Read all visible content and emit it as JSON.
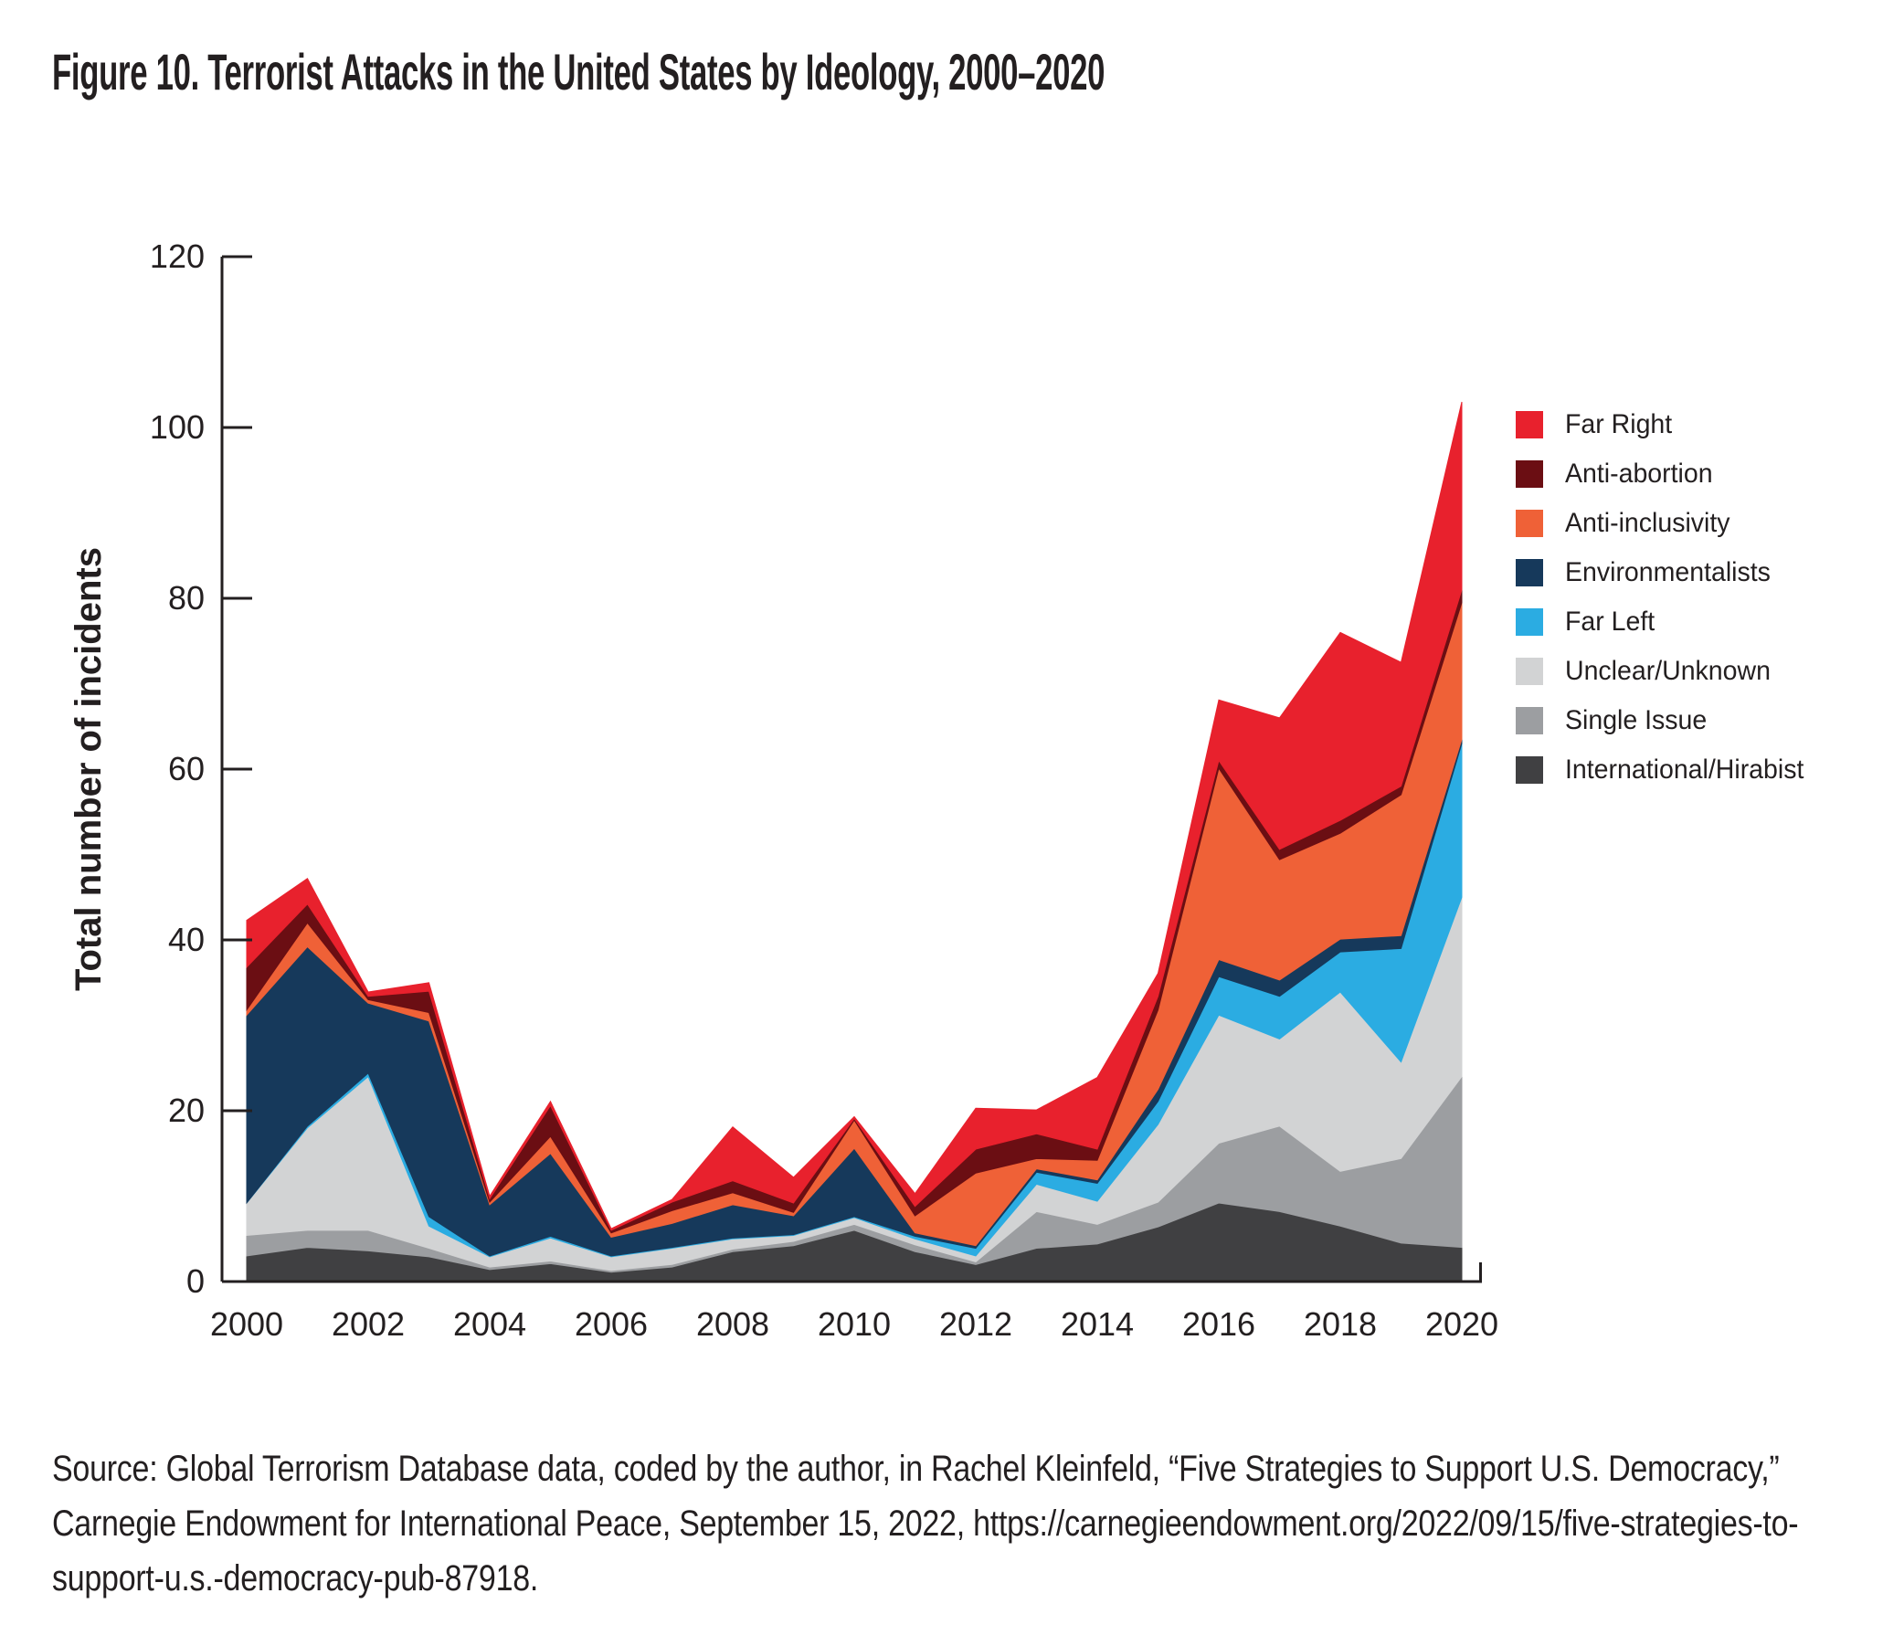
{
  "figure": {
    "title": "Figure 10. Terrorist Attacks in the United States by Ideology, 2000–2020"
  },
  "source": {
    "text": "Source: Global Terrorism Database data, coded by the author, in Rachel Kleinfeld, “Five Strategies to Support U.S. Democracy,” Carnegie Endowment for International Peace, September 15, 2022, https://carnegieendowment.org/2022/09/15/five-strategies-to-support-u.s.-democracy-pub-87918."
  },
  "legend": {
    "position": "right",
    "items": [
      {
        "label": "Far Right",
        "color": "#E8212D"
      },
      {
        "label": "Anti-abortion",
        "color": "#6B0E13"
      },
      {
        "label": "Anti-inclusivity",
        "color": "#EF6137"
      },
      {
        "label": "Environmentalists",
        "color": "#16395B"
      },
      {
        "label": "Far Left",
        "color": "#2BACE2"
      },
      {
        "label": "Unclear/Unknown",
        "color": "#D2D3D4"
      },
      {
        "label": "Single Issue",
        "color": "#9C9EA1"
      },
      {
        "label": "International/Hirabist",
        "color": "#404042"
      }
    ]
  },
  "chart_data": {
    "type": "area",
    "stacked": true,
    "title": "Figure 10. Terrorist Attacks in the United States by Ideology, 2000–2020",
    "xlabel": "",
    "ylabel": "Total number of incidents",
    "ylim": [
      0,
      120
    ],
    "y_ticks": [
      0,
      20,
      40,
      60,
      80,
      100,
      120
    ],
    "grid": false,
    "legend_position": "right",
    "x": [
      2000,
      2001,
      2002,
      2003,
      2004,
      2005,
      2006,
      2007,
      2008,
      2009,
      2010,
      2011,
      2012,
      2013,
      2014,
      2015,
      2016,
      2017,
      2018,
      2019,
      2020
    ],
    "x_tick_labels": [
      2000,
      2002,
      2004,
      2006,
      2008,
      2010,
      2012,
      2014,
      2016,
      2018,
      2020
    ],
    "stack_note": "series listed bottom to top; values estimated from figure",
    "series": [
      {
        "name": "International/Hirabist",
        "color": "#404042",
        "values": [
          3.0,
          4.0,
          3.6,
          2.9,
          1.4,
          2.1,
          1.1,
          1.7,
          3.5,
          4.2,
          6.0,
          3.5,
          2.0,
          3.9,
          4.4,
          6.4,
          9.2,
          8.2,
          6.5,
          4.5,
          4.0
        ]
      },
      {
        "name": "Single Issue",
        "color": "#9C9EA1",
        "values": [
          2.4,
          2.0,
          2.4,
          1.0,
          0.3,
          0.3,
          0.2,
          0.3,
          0.3,
          0.5,
          0.7,
          0.8,
          0.3,
          4.3,
          2.3,
          2.9,
          7.0,
          10.0,
          6.4,
          9.9,
          20.0
        ]
      },
      {
        "name": "Unclear/Unknown",
        "color": "#D2D3D4",
        "values": [
          3.8,
          12.0,
          18.0,
          2.6,
          1.2,
          2.7,
          1.6,
          1.9,
          1.2,
          0.7,
          0.8,
          0.7,
          0.7,
          3.2,
          2.7,
          9.1,
          15.0,
          10.2,
          21.0,
          11.3,
          21.0
        ]
      },
      {
        "name": "Far Left",
        "color": "#2BACE2",
        "values": [
          0.0,
          0.2,
          0.4,
          1.1,
          0.1,
          0.2,
          0.1,
          0.1,
          0.1,
          0.1,
          0.1,
          0.3,
          0.9,
          1.4,
          2.1,
          2.7,
          4.5,
          5.0,
          4.7,
          13.3,
          18.0
        ]
      },
      {
        "name": "Environmentalists",
        "color": "#16395B",
        "values": [
          22.0,
          21.0,
          8.2,
          22.9,
          6.0,
          9.7,
          2.2,
          2.8,
          3.9,
          2.2,
          8.0,
          0.4,
          0.3,
          0.4,
          0.4,
          1.4,
          2.0,
          1.9,
          1.5,
          1.5,
          0.5
        ]
      },
      {
        "name": "Anti-inclusivity",
        "color": "#EF6137",
        "values": [
          0.6,
          2.8,
          0.4,
          1.0,
          0.3,
          2.0,
          0.5,
          1.5,
          1.4,
          0.4,
          3.3,
          2.0,
          8.5,
          1.2,
          2.3,
          9.3,
          22.4,
          14.1,
          12.4,
          16.5,
          16.0
        ]
      },
      {
        "name": "Anti-abortion",
        "color": "#6B0E13",
        "values": [
          5.0,
          2.2,
          0.4,
          2.5,
          0.4,
          3.6,
          0.3,
          1.0,
          1.4,
          1.1,
          0.2,
          1.1,
          2.8,
          2.9,
          1.3,
          1.6,
          0.9,
          1.2,
          1.5,
          1.0,
          1.5
        ]
      },
      {
        "name": "Far Right",
        "color": "#E8212D",
        "values": [
          5.5,
          3.0,
          0.5,
          1.0,
          0.3,
          0.5,
          0.2,
          0.3,
          6.3,
          3.0,
          0.2,
          1.5,
          4.8,
          2.8,
          8.4,
          2.7,
          7.1,
          15.4,
          22.0,
          14.5,
          22.0
        ]
      }
    ]
  }
}
